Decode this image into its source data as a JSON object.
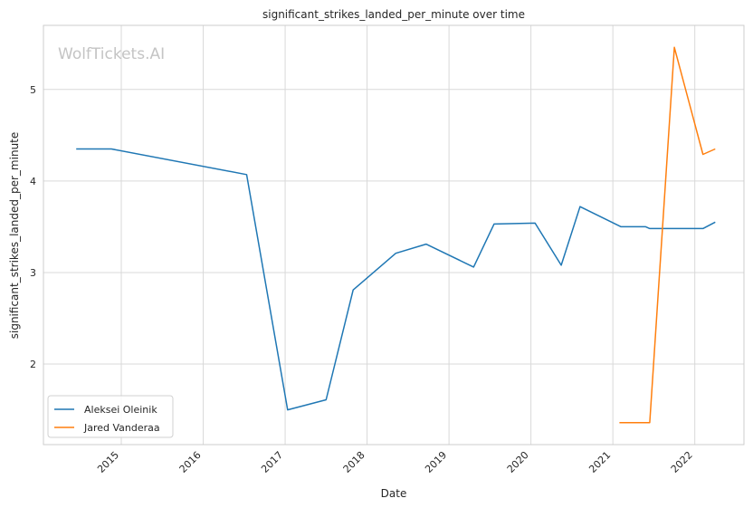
{
  "watermark": "WolfTickets.AI",
  "chart_data": {
    "type": "line",
    "title": "significant_strikes_landed_per_minute over time",
    "xlabel": "Date",
    "ylabel": "significant_strikes_landed_per_minute",
    "x_tick_labels": [
      "2015",
      "2016",
      "2017",
      "2018",
      "2019",
      "2020",
      "2021",
      "2022"
    ],
    "y_tick_labels": [
      "2",
      "3",
      "4",
      "5"
    ],
    "x_ticks": [
      2015,
      2016,
      2017,
      2018,
      2019,
      2020,
      2021,
      2022
    ],
    "y_ticks": [
      2,
      3,
      4,
      5
    ],
    "xlim": [
      2014.05,
      2022.6
    ],
    "ylim": [
      1.12,
      5.7
    ],
    "grid": true,
    "legend_position": "lower-left",
    "series": [
      {
        "name": "Aleksei Oleinik",
        "color": "#1f77b4",
        "x": [
          2014.45,
          2014.88,
          2016.53,
          2017.03,
          2017.5,
          2017.83,
          2018.35,
          2018.72,
          2019.3,
          2019.55,
          2020.05,
          2020.37,
          2020.6,
          2021.1,
          2021.4,
          2021.45,
          2022.1,
          2022.25
        ],
        "y": [
          4.35,
          4.35,
          4.07,
          1.5,
          1.61,
          2.81,
          3.21,
          3.31,
          3.06,
          3.53,
          3.54,
          3.08,
          3.72,
          3.5,
          3.5,
          3.48,
          3.48,
          3.55
        ]
      },
      {
        "name": "Jared Vanderaa",
        "color": "#ff7f0e",
        "x": [
          2021.08,
          2021.45,
          2021.75,
          2022.1,
          2022.25
        ],
        "y": [
          1.36,
          1.36,
          5.46,
          4.29,
          4.35
        ]
      }
    ]
  }
}
